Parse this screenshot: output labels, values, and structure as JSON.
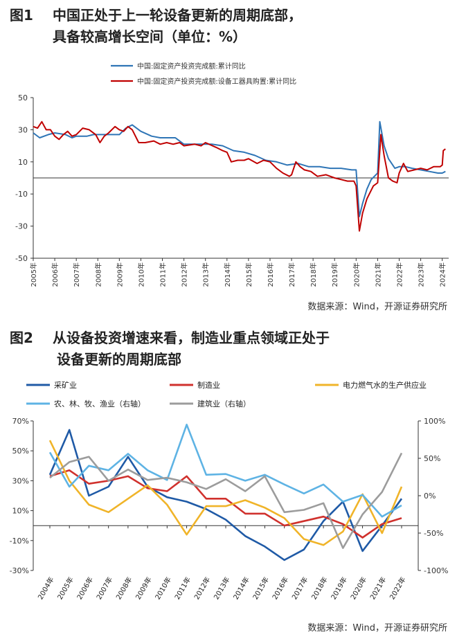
{
  "fig1": {
    "number": "图1",
    "title_line1": "中国正处于上一轮设备更新的周期底部，",
    "title_line2": "具备较高增长空间（单位：%）",
    "source": "数据来源：Wind，开源证券研究所"
  },
  "fig2": {
    "number": "图2",
    "title_line1": "从设备投资增速来看，制造业重点领域正处于",
    "title_line2": "设备更新的周期底部",
    "source": "数据来源：Wind，开源证券研究所"
  },
  "chart_data": [
    {
      "type": "line",
      "title": "",
      "ylim": [
        -50,
        50
      ],
      "yticks": [
        "50",
        "30",
        "10",
        "-10",
        "-30",
        "-50"
      ],
      "x_ticks": [
        "2005年",
        "2006年",
        "2007年",
        "2008年",
        "2009年",
        "2010年",
        "2011年",
        "2012年",
        "2013年",
        "2014年",
        "2015年",
        "2016年",
        "2017年",
        "2018年",
        "2019年",
        "2020年",
        "2021年",
        "2022年",
        "2023年",
        "2024年"
      ],
      "legend_placement": "top",
      "grid": false,
      "series": [
        {
          "name": "中国:固定资产投资完成额:累计同比",
          "color": "#2e75b6",
          "points": [
            [
              2005.0,
              28
            ],
            [
              2005.3,
              25
            ],
            [
              2005.7,
              27
            ],
            [
              2006.0,
              28
            ],
            [
              2006.5,
              27
            ],
            [
              2006.8,
              25
            ],
            [
              2007.0,
              26
            ],
            [
              2007.5,
              26
            ],
            [
              2007.8,
              27
            ],
            [
              2008.0,
              27
            ],
            [
              2008.5,
              27
            ],
            [
              2008.8,
              27
            ],
            [
              2009.0,
              27
            ],
            [
              2009.3,
              31
            ],
            [
              2009.6,
              33
            ],
            [
              2010.0,
              29
            ],
            [
              2010.5,
              26
            ],
            [
              2010.9,
              25
            ],
            [
              2011.2,
              25
            ],
            [
              2011.6,
              25
            ],
            [
              2012.0,
              21
            ],
            [
              2012.5,
              21
            ],
            [
              2012.9,
              21
            ],
            [
              2013.3,
              21
            ],
            [
              2013.8,
              20
            ],
            [
              2014.3,
              17
            ],
            [
              2014.8,
              16
            ],
            [
              2015.3,
              14
            ],
            [
              2015.8,
              11
            ],
            [
              2016.3,
              10
            ],
            [
              2016.8,
              8
            ],
            [
              2017.3,
              9
            ],
            [
              2017.8,
              7
            ],
            [
              2018.3,
              7
            ],
            [
              2018.8,
              6
            ],
            [
              2019.3,
              6
            ],
            [
              2019.8,
              5
            ],
            [
              2020.0,
              5
            ],
            [
              2020.15,
              -24
            ],
            [
              2020.3,
              -16
            ],
            [
              2020.5,
              -7
            ],
            [
              2020.7,
              -1
            ],
            [
              2021.0,
              3
            ],
            [
              2021.1,
              35
            ],
            [
              2021.3,
              20
            ],
            [
              2021.5,
              12
            ],
            [
              2021.8,
              6
            ],
            [
              2022.0,
              7
            ],
            [
              2022.3,
              7
            ],
            [
              2022.6,
              6
            ],
            [
              2023.0,
              5
            ],
            [
              2023.4,
              4
            ],
            [
              2023.8,
              3
            ],
            [
              2024.0,
              3
            ],
            [
              2024.15,
              4
            ]
          ]
        },
        {
          "name": "中国:固定资产投资完成额:设备工器具购置:累计同比",
          "color": "#c00000",
          "points": [
            [
              2005.0,
              32
            ],
            [
              2005.2,
              31
            ],
            [
              2005.4,
              35
            ],
            [
              2005.6,
              30
            ],
            [
              2005.8,
              30
            ],
            [
              2006.0,
              26
            ],
            [
              2006.2,
              24
            ],
            [
              2006.4,
              27
            ],
            [
              2006.6,
              29
            ],
            [
              2006.8,
              26
            ],
            [
              2007.0,
              27
            ],
            [
              2007.3,
              31
            ],
            [
              2007.6,
              30
            ],
            [
              2007.9,
              27
            ],
            [
              2008.1,
              22
            ],
            [
              2008.3,
              26
            ],
            [
              2008.5,
              28
            ],
            [
              2008.8,
              32
            ],
            [
              2009.0,
              30
            ],
            [
              2009.2,
              29
            ],
            [
              2009.4,
              32
            ],
            [
              2009.6,
              30
            ],
            [
              2009.9,
              22
            ],
            [
              2010.2,
              22
            ],
            [
              2010.6,
              23
            ],
            [
              2010.9,
              21
            ],
            [
              2011.2,
              22
            ],
            [
              2011.5,
              21
            ],
            [
              2011.8,
              22
            ],
            [
              2012.0,
              20
            ],
            [
              2012.5,
              21
            ],
            [
              2012.8,
              20
            ],
            [
              2013.0,
              22
            ],
            [
              2013.5,
              19
            ],
            [
              2013.8,
              17
            ],
            [
              2014.0,
              16
            ],
            [
              2014.2,
              10
            ],
            [
              2014.5,
              11
            ],
            [
              2014.8,
              11
            ],
            [
              2015.0,
              12
            ],
            [
              2015.4,
              9
            ],
            [
              2015.7,
              11
            ],
            [
              2016.0,
              10
            ],
            [
              2016.3,
              6
            ],
            [
              2016.6,
              3
            ],
            [
              2016.9,
              1
            ],
            [
              2017.0,
              2
            ],
            [
              2017.2,
              10
            ],
            [
              2017.4,
              7
            ],
            [
              2017.6,
              5
            ],
            [
              2017.9,
              4
            ],
            [
              2018.2,
              1
            ],
            [
              2018.6,
              2
            ],
            [
              2019.0,
              0
            ],
            [
              2019.3,
              -1
            ],
            [
              2019.6,
              -2
            ],
            [
              2019.9,
              -2
            ],
            [
              2020.0,
              -5
            ],
            [
              2020.15,
              -33
            ],
            [
              2020.3,
              -22
            ],
            [
              2020.5,
              -13
            ],
            [
              2020.8,
              -5
            ],
            [
              2021.0,
              -3
            ],
            [
              2021.15,
              27
            ],
            [
              2021.3,
              14
            ],
            [
              2021.5,
              0
            ],
            [
              2021.7,
              -2
            ],
            [
              2021.9,
              -3
            ],
            [
              2022.0,
              3
            ],
            [
              2022.2,
              9
            ],
            [
              2022.4,
              4
            ],
            [
              2022.7,
              5
            ],
            [
              2023.0,
              6
            ],
            [
              2023.3,
              5
            ],
            [
              2023.6,
              7
            ],
            [
              2023.9,
              7
            ],
            [
              2024.0,
              8
            ],
            [
              2024.05,
              17
            ],
            [
              2024.15,
              18
            ]
          ]
        }
      ]
    },
    {
      "type": "line",
      "title": "",
      "categories": [
        "2004年",
        "2005年",
        "2006年",
        "2007年",
        "2008年",
        "2009年",
        "2010年",
        "2011年",
        "2012年",
        "2013年",
        "2014年",
        "2015年",
        "2016年",
        "2017年",
        "2018年",
        "2019年",
        "2020年",
        "2021年",
        "2022年"
      ],
      "ylim_left": [
        -30,
        70
      ],
      "ylim_right": [
        -100,
        100
      ],
      "yticks_left": [
        "70%",
        "50%",
        "30%",
        "10%",
        "-10%",
        "-30%"
      ],
      "yticks_right": [
        "100%",
        "50%",
        "0%",
        "-50%",
        "-100%"
      ],
      "legend_placement": "top",
      "grid": false,
      "series": [
        {
          "name": "采矿业",
          "axis": "left",
          "color": "#1f5aa6",
          "values": [
            34,
            64,
            20,
            26,
            46,
            26,
            19,
            16,
            11,
            4,
            -7,
            -14,
            -23,
            -16,
            3,
            16,
            -17,
            0,
            18
          ]
        },
        {
          "name": "制造业",
          "axis": "left",
          "color": "#d0312d",
          "values": [
            33,
            37,
            28,
            30,
            33,
            25,
            23,
            33,
            18,
            18,
            8,
            8,
            0,
            3,
            6,
            1,
            -8,
            1,
            5
          ]
        },
        {
          "name": "电力燃气水的生产供应业",
          "axis": "left",
          "color": "#f0b429",
          "values": [
            57,
            30,
            14,
            9,
            18,
            27,
            14,
            -6,
            13,
            13,
            17,
            12,
            5,
            -9,
            -13,
            -4,
            21,
            -5,
            26
          ]
        },
        {
          "name": "农、林、牧、渔业（右轴）",
          "axis": "right",
          "color": "#5eb3e4",
          "values": [
            58,
            12,
            40,
            34,
            56,
            34,
            21,
            95,
            28,
            29,
            20,
            28,
            15,
            3,
            15,
            -8,
            1,
            -28,
            -13
          ]
        },
        {
          "name": "建筑业（右轴）",
          "axis": "right",
          "color": "#9c9c9c",
          "values": [
            24,
            45,
            52,
            20,
            35,
            21,
            24,
            18,
            9,
            22,
            6,
            26,
            -22,
            -19,
            -10,
            -70,
            -25,
            5,
            57
          ]
        }
      ]
    }
  ]
}
